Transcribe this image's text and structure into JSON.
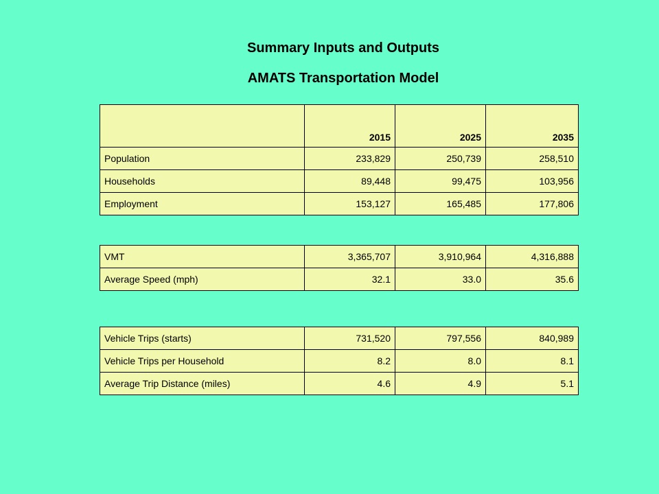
{
  "title": "Summary Inputs and Outputs",
  "subtitle": "AMATS Transportation Model",
  "years": [
    "2015",
    "2025",
    "2035"
  ],
  "table1": {
    "rows": [
      {
        "label": "Population",
        "values": [
          "233,829",
          "250,739",
          "258,510"
        ]
      },
      {
        "label": "Households",
        "values": [
          "89,448",
          "99,475",
          "103,956"
        ]
      },
      {
        "label": "Employment",
        "values": [
          "153,127",
          "165,485",
          "177,806"
        ]
      }
    ]
  },
  "table2": {
    "rows": [
      {
        "label": "VMT",
        "values": [
          "3,365,707",
          "3,910,964",
          "4,316,888"
        ]
      },
      {
        "label": "Average Speed (mph)",
        "values": [
          "32.1",
          "33.0",
          "35.6"
        ]
      }
    ]
  },
  "table3": {
    "rows": [
      {
        "label": "Vehicle Trips (starts)",
        "values": [
          "731,520",
          "797,556",
          "840,989"
        ]
      },
      {
        "label": "Vehicle Trips per Household",
        "values": [
          "8.2",
          "8.0",
          "8.1"
        ]
      },
      {
        "label": "Average Trip Distance (miles)",
        "values": [
          "4.6",
          "4.9",
          "5.1"
        ]
      }
    ]
  }
}
